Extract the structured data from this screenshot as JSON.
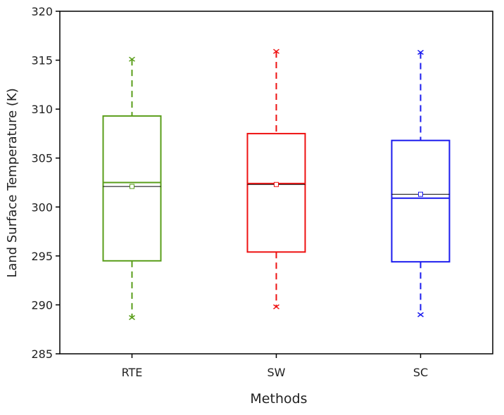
{
  "chart_data": {
    "type": "box",
    "title": "",
    "xlabel": "Methods",
    "ylabel": "Land Surface Temperature (K)",
    "ylim": [
      285,
      320
    ],
    "yticks": [
      285,
      290,
      295,
      300,
      305,
      310,
      315,
      320
    ],
    "categories": [
      "RTE",
      "SW",
      "SC"
    ],
    "grid": false,
    "series": [
      {
        "category": "RTE",
        "color": "#5a9e1a",
        "min": 288.7,
        "q1": 294.5,
        "median": 302.5,
        "mean": 302.1,
        "q3": 309.3,
        "max": 315.1
      },
      {
        "category": "SW",
        "color": "#ee1111",
        "min": 289.8,
        "q1": 295.4,
        "median": 302.4,
        "mean": 302.3,
        "q3": 307.5,
        "max": 315.9
      },
      {
        "category": "SC",
        "color": "#1a1aee",
        "min": 289.0,
        "q1": 294.4,
        "median": 300.9,
        "mean": 301.3,
        "q3": 306.8,
        "max": 315.8
      }
    ]
  }
}
